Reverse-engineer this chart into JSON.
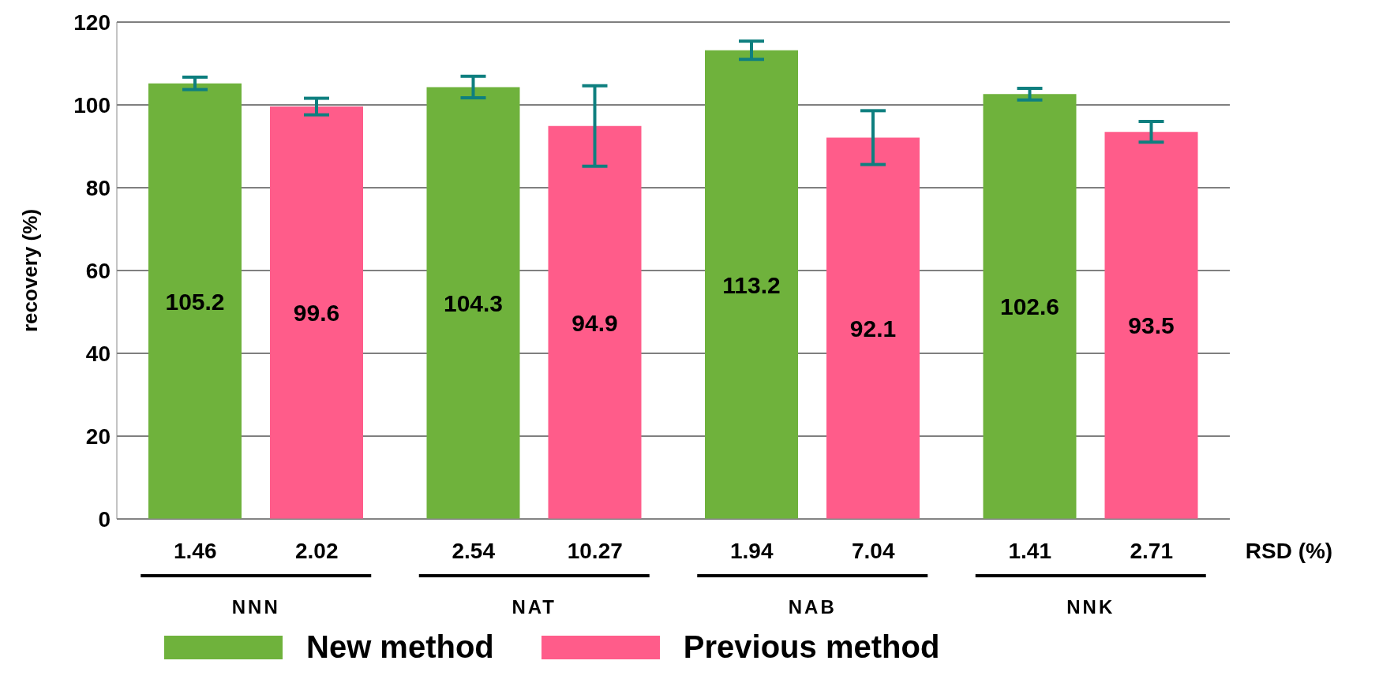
{
  "chart_data": {
    "type": "bar",
    "ylabel": "recovery (%)",
    "categories": [
      "NNN",
      "NAT",
      "NAB",
      "NNK"
    ],
    "series": [
      {
        "name": "New method",
        "color": "#6fb23c",
        "values": [
          105.2,
          104.3,
          113.2,
          102.6
        ],
        "errors": [
          1.5,
          2.6,
          2.2,
          1.4
        ]
      },
      {
        "name": "Previous method",
        "color": "#ff5c8a",
        "values": [
          99.6,
          94.9,
          92.1,
          93.5
        ],
        "errors": [
          2.0,
          9.7,
          6.5,
          2.5
        ]
      }
    ],
    "ylim": [
      0,
      120
    ],
    "yticks": [
      0,
      20,
      40,
      60,
      80,
      100,
      120
    ],
    "grid": "y",
    "legend": "bottom",
    "data_labels": true,
    "annotations": [
      "1.46",
      "2.02",
      "2.54",
      "10.27",
      "1.94",
      "7.04",
      "1.41",
      "2.71",
      "RSD (%)"
    ]
  }
}
